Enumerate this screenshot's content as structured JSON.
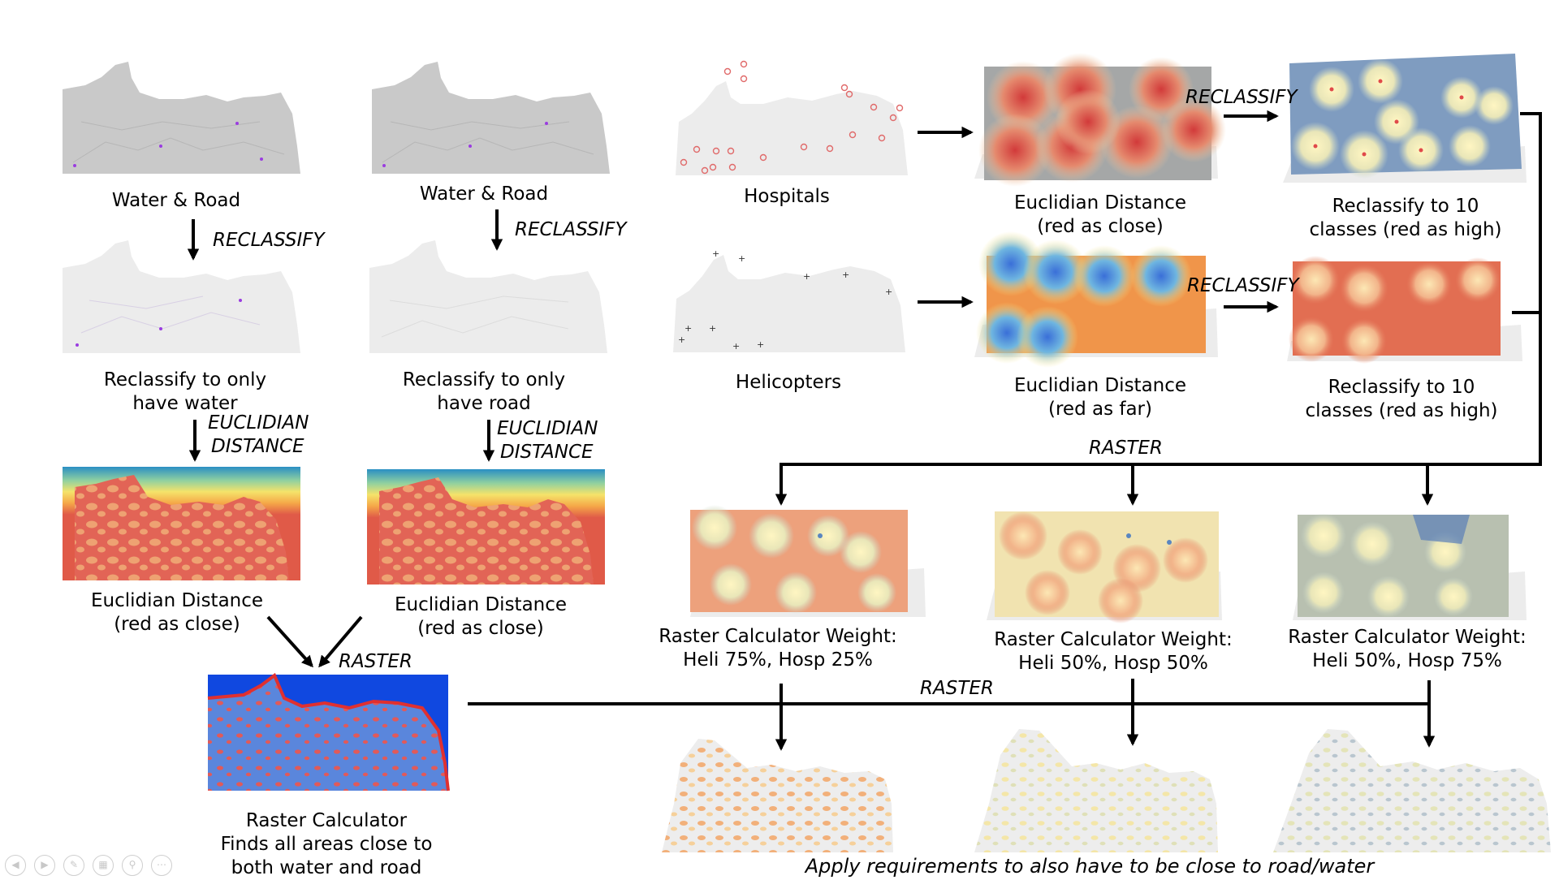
{
  "labels": {
    "water_road_1": "Water & Road",
    "water_road_2": "Water & Road",
    "reclass_water": [
      "Reclassify to only",
      "have water"
    ],
    "reclass_road": [
      "Reclassify to only",
      "have road"
    ],
    "euclid_water": [
      "Euclidian Distance",
      "(red as close)"
    ],
    "euclid_road": [
      "Euclidian Distance",
      "(red as close)"
    ],
    "hospitals": "Hospitals",
    "helicopters": "Helicopters",
    "euclid_hosp": [
      "Euclidian Distance",
      "(red as close)"
    ],
    "euclid_heli": [
      "Euclidian Distance",
      "(red as far)"
    ],
    "reclass10_hosp": [
      "Reclassify to 10",
      "classes (red as high)"
    ],
    "reclass10_heli": [
      "Reclassify to 10",
      "classes (red as high)"
    ],
    "calc_1": [
      "Raster Calculator Weight:",
      "Heli 75%, Hosp 25%"
    ],
    "calc_2": [
      "Raster Calculator Weight:",
      "Heli 50%, Hosp 50%"
    ],
    "calc_3": [
      "Raster Calculator Weight:",
      "Heli 50%, Hosp 75%"
    ],
    "calc_close": [
      "Raster Calculator",
      "Finds all areas close to",
      "both water and road"
    ],
    "footer": "Apply requirements to also have to be close to road/water"
  },
  "operations": {
    "reclassify_1": "RECLASSIFY",
    "reclassify_2": "RECLASSIFY",
    "reclassify_3": "RECLASSIFY",
    "reclassify_4": "RECLASSIFY",
    "euclidian_1": [
      "EUCLIDIAN",
      "DISTANCE"
    ],
    "euclidian_2": [
      "EUCLIDIAN",
      "DISTANCE"
    ],
    "raster_1": "RASTER",
    "raster_2": "RASTER",
    "raster_3": "RASTER"
  },
  "colors": {
    "map_gray": "#c9c9c9",
    "map_light": "#ececec",
    "arrow": "#000000",
    "close_blue": "#2a5ce0",
    "close_red": "#e04646"
  },
  "controls": [
    "back-icon",
    "forward-icon",
    "pen-icon",
    "slides-icon",
    "zoom-icon",
    "more-icon"
  ]
}
